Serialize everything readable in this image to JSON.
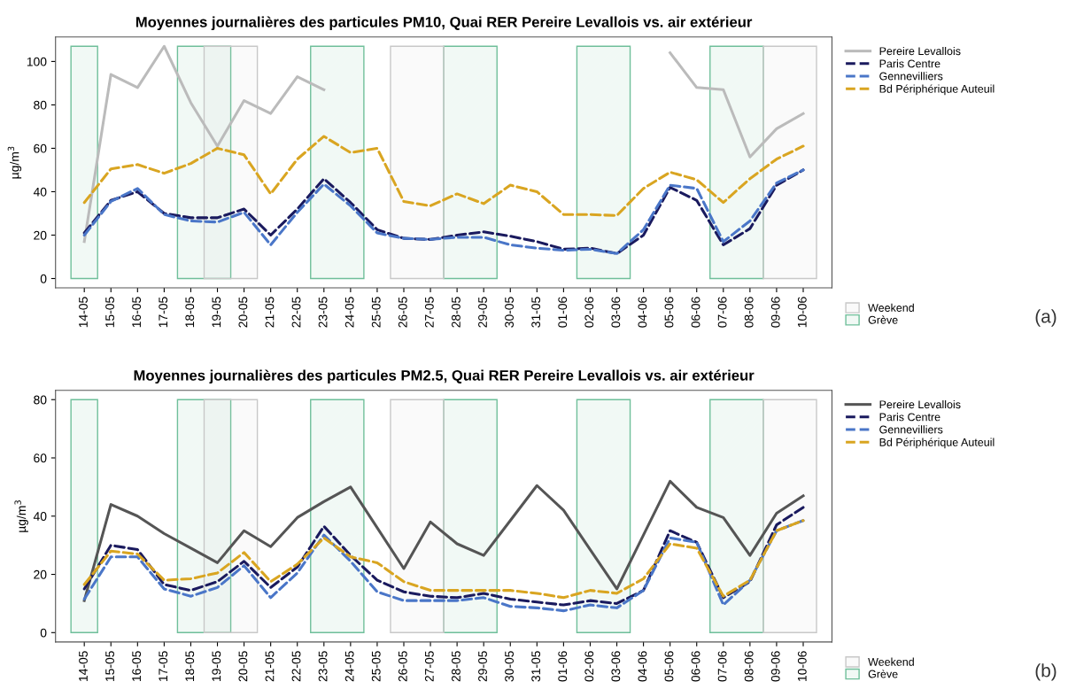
{
  "chart_data": [
    {
      "type": "line",
      "title": "Moyennes journalières des particules PM10, Quai RER Pereire Levallois vs. air extérieur",
      "ylabel": "µg/m$^{3}$",
      "categories": [
        "14-05",
        "15-05",
        "16-05",
        "17-05",
        "18-05",
        "19-05",
        "20-05",
        "21-05",
        "22-05",
        "23-05",
        "24-05",
        "25-05",
        "26-05",
        "27-05",
        "28-05",
        "29-05",
        "30-05",
        "31-05",
        "01-06",
        "02-06",
        "03-06",
        "04-06",
        "05-06",
        "06-06",
        "07-06",
        "08-06",
        "09-06",
        "10-06"
      ],
      "ylim": [
        -4.3,
        111.3
      ],
      "yticks": [
        0,
        20,
        40,
        60,
        80,
        100
      ],
      "grid": false,
      "legend": "right",
      "series": [
        {
          "name": "Pereire Levallois",
          "color": "#bbbbbb",
          "line_style": "solid",
          "values": [
            17,
            94,
            88,
            107,
            81,
            61,
            82,
            76,
            93,
            87,
            null,
            null,
            null,
            null,
            null,
            null,
            null,
            null,
            null,
            null,
            null,
            null,
            104,
            88,
            87,
            56,
            69,
            76
          ]
        },
        {
          "name": "Paris Centre",
          "color": "#1a1a5e",
          "line_style": "dashed",
          "values": [
            21,
            36,
            40,
            30,
            28,
            28,
            32,
            20,
            32,
            46,
            35,
            22.5,
            18.5,
            18,
            20,
            21.5,
            19.5,
            17,
            13.5,
            14,
            11.5,
            20,
            42,
            36,
            15.5,
            23,
            43,
            50
          ]
        },
        {
          "name": "Gennevilliers",
          "color": "#4a76c8",
          "line_style": "dashed",
          "values": [
            20,
            35.5,
            41.5,
            29.5,
            26.5,
            26,
            30.5,
            15.5,
            30.5,
            43.5,
            33.5,
            21,
            18.5,
            18,
            19,
            19,
            15.5,
            14,
            13,
            13.5,
            11.5,
            22.5,
            43,
            41.5,
            17,
            26.5,
            44,
            50
          ]
        },
        {
          "name": "Bd Périphérique Auteuil",
          "color": "#d9a521",
          "line_style": "dashed",
          "values": [
            35,
            50.5,
            52.5,
            48.5,
            53,
            60,
            57,
            39,
            55,
            65.5,
            58,
            60,
            35.5,
            33.5,
            39,
            34.5,
            43,
            40,
            29.5,
            29.5,
            29,
            41.5,
            49,
            45.5,
            35,
            46,
            55,
            61
          ]
        }
      ],
      "bands": [
        {
          "axis": "x",
          "from": "14-05",
          "to": "14-05",
          "label": "Grève",
          "color": "#6fbf9a"
        },
        {
          "axis": "x",
          "from": "18-05",
          "to": "19-05",
          "color": "#6fbf9a"
        },
        {
          "axis": "x",
          "from": "23-05",
          "to": "24-05",
          "color": "#6fbf9a"
        },
        {
          "axis": "x",
          "from": "28-05",
          "to": "29-05",
          "color": "#6fbf9a"
        },
        {
          "axis": "x",
          "from": "02-06",
          "to": "03-06",
          "color": "#6fbf9a"
        },
        {
          "axis": "x",
          "from": "07-06",
          "to": "08-06",
          "color": "#6fbf9a"
        },
        {
          "axis": "x",
          "from": "19-05",
          "to": "20-05",
          "label": "Weekend",
          "color": "#c8c8c8"
        },
        {
          "axis": "x",
          "from": "26-05",
          "to": "27-05",
          "color": "#c8c8c8"
        },
        {
          "axis": "x",
          "from": "09-06",
          "to": "10-06",
          "color": "#c8c8c8"
        }
      ],
      "annotations": [
        "(a)"
      ]
    },
    {
      "type": "line",
      "title": "Moyennes journalières des particules PM2.5, Quai RER Pereire Levallois vs. air extérieur",
      "ylabel": "µg/m$^{3}$",
      "categories": [
        "14-05",
        "15-05",
        "16-05",
        "17-05",
        "18-05",
        "19-05",
        "20-05",
        "21-05",
        "22-05",
        "23-05",
        "24-05",
        "25-05",
        "26-05",
        "27-05",
        "28-05",
        "29-05",
        "30-05",
        "31-05",
        "01-06",
        "02-06",
        "03-06",
        "04-06",
        "05-06",
        "06-06",
        "07-06",
        "08-06",
        "09-06",
        "10-06"
      ],
      "ylim": [
        -3.2,
        83.2
      ],
      "yticks": [
        0,
        20,
        40,
        60,
        80
      ],
      "grid": false,
      "legend": "right",
      "series": [
        {
          "name": "Pereire Levallois",
          "color": "#555555",
          "line_style": "solid",
          "values": [
            11,
            44,
            40,
            34,
            29,
            24,
            35,
            29.5,
            39.5,
            45,
            50,
            36,
            22,
            38,
            30.5,
            26.5,
            38.5,
            50.5,
            42,
            28.5,
            15,
            33.5,
            52,
            43,
            39.5,
            26.5,
            41,
            47
          ]
        },
        {
          "name": "Paris Centre",
          "color": "#1a1a5e",
          "line_style": "dashed",
          "values": [
            15,
            30,
            28.5,
            16.5,
            14.5,
            17.5,
            24.5,
            15.5,
            22.5,
            36.5,
            26.5,
            18,
            14,
            12.5,
            12,
            13.5,
            11.5,
            10.5,
            9.5,
            11,
            10,
            14.5,
            35,
            31,
            12,
            17.5,
            37,
            43
          ]
        },
        {
          "name": "Gennevilliers",
          "color": "#4a76c8",
          "line_style": "dashed",
          "values": [
            11.5,
            26,
            26,
            15,
            12.5,
            15.5,
            23,
            12,
            20.5,
            33.5,
            24.5,
            14,
            11,
            11,
            11,
            12,
            9,
            8.5,
            7.5,
            9.5,
            8.5,
            14.5,
            32.5,
            31,
            9.5,
            18,
            35,
            38.5
          ]
        },
        {
          "name": "Bd Périphérique Auteuil",
          "color": "#d9a521",
          "line_style": "dashed",
          "values": [
            16.5,
            28,
            27,
            18,
            18.5,
            20.5,
            27.5,
            17.5,
            23.5,
            32.5,
            26,
            24,
            17.5,
            14.5,
            14.5,
            14.5,
            14.5,
            13.5,
            12,
            14.5,
            13.5,
            18.5,
            30.5,
            29,
            12.5,
            18,
            35,
            38.5
          ]
        }
      ],
      "bands": [
        {
          "axis": "x",
          "from": "14-05",
          "to": "14-05",
          "label": "Grève",
          "color": "#6fbf9a"
        },
        {
          "axis": "x",
          "from": "18-05",
          "to": "19-05",
          "color": "#6fbf9a"
        },
        {
          "axis": "x",
          "from": "23-05",
          "to": "24-05",
          "color": "#6fbf9a"
        },
        {
          "axis": "x",
          "from": "28-05",
          "to": "29-05",
          "color": "#6fbf9a"
        },
        {
          "axis": "x",
          "from": "02-06",
          "to": "03-06",
          "color": "#6fbf9a"
        },
        {
          "axis": "x",
          "from": "07-06",
          "to": "08-06",
          "color": "#6fbf9a"
        },
        {
          "axis": "x",
          "from": "19-05",
          "to": "20-05",
          "label": "Weekend",
          "color": "#c8c8c8"
        },
        {
          "axis": "x",
          "from": "26-05",
          "to": "27-05",
          "color": "#c8c8c8"
        },
        {
          "axis": "x",
          "from": "09-06",
          "to": "10-06",
          "color": "#c8c8c8"
        }
      ],
      "annotations": [
        "(b)"
      ]
    }
  ]
}
